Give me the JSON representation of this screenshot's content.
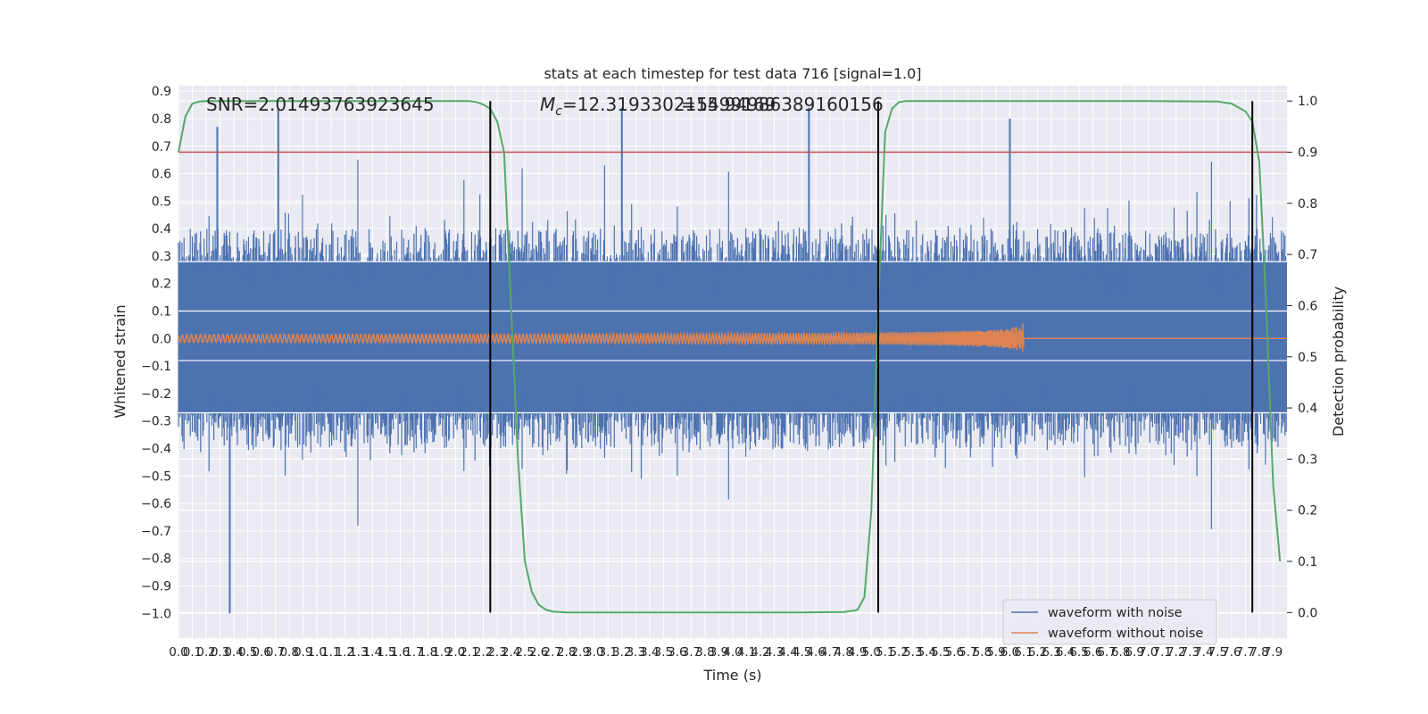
{
  "chart_data": {
    "type": "line",
    "title": "stats at each timestep for test data 716 [signal=1.0]",
    "xlabel": "Time (s)",
    "ylabel": "Whitened strain",
    "y2label": "Detection probability",
    "xlim": [
      0,
      8.0
    ],
    "ylim": [
      -1.09,
      0.92
    ],
    "y2lim": [
      -0.05,
      1.03
    ],
    "x_ticks": [
      "0.0",
      "0.1",
      "0.2",
      "0.3",
      "0.4",
      "0.5",
      "0.6",
      "0.7",
      "0.8",
      "0.9",
      "1.0",
      "1.1",
      "1.2",
      "1.3",
      "1.4",
      "1.5",
      "1.6",
      "1.7",
      "1.8",
      "1.9",
      "2.0",
      "2.1",
      "2.2",
      "2.3",
      "2.4",
      "2.5",
      "2.6",
      "2.7",
      "2.8",
      "2.9",
      "3.0",
      "3.1",
      "3.2",
      "3.3",
      "3.4",
      "3.5",
      "3.6",
      "3.7",
      "3.8",
      "3.9",
      "4.0",
      "4.1",
      "4.2",
      "4.3",
      "4.4",
      "4.5",
      "4.6",
      "4.7",
      "4.8",
      "4.9",
      "5.0",
      "5.1",
      "5.2",
      "5.3",
      "5.4",
      "5.5",
      "5.6",
      "5.7",
      "5.8",
      "5.9",
      "6.0",
      "6.1",
      "6.2",
      "6.3",
      "6.4",
      "6.5",
      "6.6",
      "6.7",
      "6.8",
      "6.9",
      "7.0",
      "7.1",
      "7.2",
      "7.3",
      "7.4",
      "7.5",
      "7.6",
      "7.7",
      "7.8",
      "7.9"
    ],
    "y_ticks": [
      "0.9",
      "0.8",
      "0.7",
      "0.6",
      "0.5",
      "0.4",
      "0.3",
      "0.2",
      "0.1",
      "0.0",
      "−0.1",
      "−0.2",
      "−0.3",
      "−0.4",
      "−0.5",
      "−0.6",
      "−0.7",
      "−0.8",
      "−0.9",
      "−1.0"
    ],
    "y2_ticks": [
      "1.0",
      "0.9",
      "0.8",
      "0.7",
      "0.6",
      "0.5",
      "0.4",
      "0.3",
      "0.2",
      "0.1",
      "0.0"
    ],
    "series": [
      {
        "name": "waveform with noise",
        "color": "#4c72b0",
        "typical_amplitude": 0.35,
        "min": -1.0,
        "max": 0.84
      },
      {
        "name": "waveform without noise",
        "color": "#dd8452",
        "chirp_start": 0.0,
        "merger_time": 6.1,
        "peak_amplitude": 0.06
      },
      {
        "color": "#55a868",
        "axis": "right",
        "x": [
          0.0,
          0.05,
          0.1,
          0.15,
          0.2,
          0.4,
          1.0,
          1.5,
          2.0,
          2.1,
          2.15,
          2.2,
          2.25,
          2.3,
          2.35,
          2.4,
          2.45,
          2.5,
          2.55,
          2.6,
          2.65,
          2.7,
          2.75,
          2.8,
          3.0,
          3.5,
          4.0,
          4.5,
          4.8,
          4.9,
          4.95,
          5.0,
          5.05,
          5.1,
          5.15,
          5.2,
          5.25,
          5.3,
          5.35,
          5.4,
          6.0,
          7.0,
          7.5,
          7.6,
          7.7,
          7.75,
          7.8,
          7.85,
          7.9,
          7.95
        ],
        "y": [
          0.9,
          0.97,
          0.995,
          0.999,
          1.0,
          1.0,
          1.0,
          1.0,
          1.0,
          1.0,
          0.998,
          0.993,
          0.985,
          0.96,
          0.9,
          0.6,
          0.3,
          0.1,
          0.04,
          0.015,
          0.006,
          0.002,
          0.001,
          0.0,
          0.0,
          0.0,
          0.0,
          0.0,
          0.001,
          0.005,
          0.03,
          0.2,
          0.6,
          0.94,
          0.985,
          0.998,
          1.0,
          1.0,
          1.0,
          1.0,
          1.0,
          1.0,
          0.999,
          0.995,
          0.98,
          0.96,
          0.88,
          0.6,
          0.25,
          0.1
        ]
      }
    ],
    "hlines": [
      {
        "axis": "right",
        "y": 0.9,
        "color": "#c44e52"
      }
    ],
    "vlines": [
      {
        "x": 2.25,
        "color": "#000000"
      },
      {
        "x": 5.05,
        "color": "#000000"
      },
      {
        "x": 7.75,
        "color": "#000000"
      }
    ],
    "annotations": [
      {
        "id": "snr",
        "text": "SNR=2.01493763923645"
      },
      {
        "id": "mc_prefix",
        "text": "M"
      },
      {
        "id": "mc_subscript",
        "text": "c"
      },
      {
        "id": "mc_value",
        "text": "=12.319330215499169"
      },
      {
        "id": "mc_overlap",
        "text": "=15.94986389160156"
      }
    ],
    "legend": {
      "placement": "lower right",
      "items": [
        "waveform with noise",
        "waveform without noise"
      ]
    },
    "grid": true,
    "background": "#eaeaf2"
  }
}
